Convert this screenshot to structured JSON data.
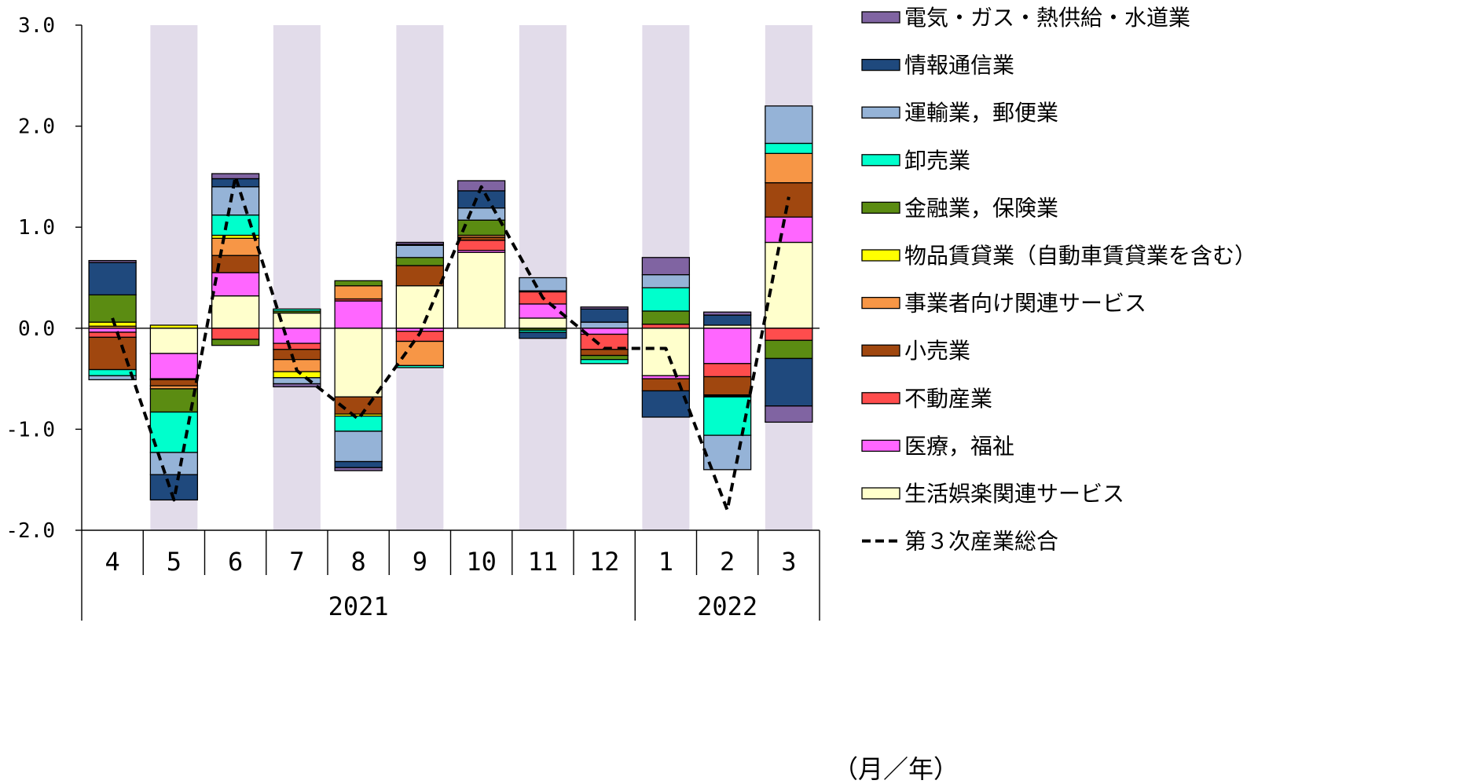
{
  "chart_data": {
    "type": "bar",
    "stacked": true,
    "categories": [
      "4",
      "5",
      "6",
      "7",
      "8",
      "9",
      "10",
      "11",
      "12",
      "1",
      "2",
      "3"
    ],
    "years": [
      {
        "label": "2021"
      },
      {
        "label": "2022"
      }
    ],
    "unit_label": "（月／年）",
    "ylim": [
      -2.0,
      3.0
    ],
    "yticks": [
      -2.0,
      -1.0,
      0.0,
      1.0,
      2.0,
      3.0
    ],
    "ytick_labels": [
      "-2.0",
      "-1.0",
      "0.0",
      "1.0",
      "2.0",
      "3.0"
    ],
    "shaded_categories": [
      1,
      3,
      5,
      7,
      9,
      11
    ],
    "shade_color": "#e2dcea",
    "legend_position": "right",
    "series": [
      {
        "name": "生活娯楽関連サービス",
        "color": "#ffffcc",
        "values": [
          0.0,
          -0.25,
          0.32,
          0.15,
          -0.68,
          0.42,
          0.75,
          0.1,
          0.0,
          -0.47,
          0.03,
          0.85
        ]
      },
      {
        "name": "医療，福祉",
        "color": "#ff66ff",
        "values": [
          -0.04,
          -0.25,
          0.23,
          -0.15,
          0.27,
          -0.03,
          0.02,
          0.14,
          -0.06,
          -0.03,
          -0.35,
          0.25
        ]
      },
      {
        "name": "不動産業",
        "color": "#ff4d4d",
        "values": [
          -0.05,
          -0.01,
          -0.11,
          -0.06,
          0.02,
          -0.1,
          0.1,
          0.12,
          -0.15,
          0.04,
          -0.13,
          -0.12
        ]
      },
      {
        "name": "小売業",
        "color": "#a0470f",
        "values": [
          -0.32,
          -0.06,
          0.17,
          -0.1,
          -0.17,
          0.2,
          0.03,
          0.0,
          -0.06,
          -0.12,
          -0.18,
          0.34
        ]
      },
      {
        "name": "事業者向け関連サービス",
        "color": "#f79646",
        "values": [
          0.02,
          -0.03,
          0.17,
          -0.12,
          0.13,
          -0.24,
          0.02,
          0.0,
          0.0,
          0.0,
          -0.01,
          0.29
        ]
      },
      {
        "name": "物品賃貸業（自動車賃貸業を含む）",
        "color": "#ffff00",
        "values": [
          0.04,
          0.03,
          0.03,
          -0.06,
          -0.02,
          0.0,
          0.0,
          0.01,
          0.0,
          0.0,
          0.0,
          0.0
        ]
      },
      {
        "name": "金融業，保険業",
        "color": "#5b8c12",
        "values": [
          0.27,
          -0.23,
          -0.06,
          0.02,
          0.05,
          0.08,
          0.15,
          -0.02,
          -0.04,
          0.13,
          -0.01,
          -0.18
        ]
      },
      {
        "name": "卸売業",
        "color": "#00ffcc",
        "values": [
          -0.06,
          -0.4,
          0.2,
          0.02,
          -0.15,
          -0.02,
          0.0,
          -0.02,
          -0.04,
          0.23,
          -0.38,
          0.1
        ]
      },
      {
        "name": "運輸業，郵便業",
        "color": "#95b3d7",
        "values": [
          -0.04,
          -0.22,
          0.28,
          -0.06,
          -0.3,
          0.12,
          0.12,
          0.13,
          0.06,
          0.13,
          -0.34,
          0.37
        ]
      },
      {
        "name": "情報通信業",
        "color": "#1f497d",
        "values": [
          0.32,
          -0.25,
          0.08,
          0.0,
          -0.06,
          0.01,
          0.17,
          -0.06,
          0.13,
          -0.26,
          0.1,
          -0.47
        ]
      },
      {
        "name": "電気・ガス・熱供給・水道業",
        "color": "#8064a2",
        "values": [
          0.02,
          0.0,
          0.05,
          -0.03,
          -0.03,
          0.02,
          0.1,
          0.0,
          0.02,
          0.17,
          0.03,
          -0.16
        ]
      }
    ],
    "line": {
      "name": "第３次産業総合",
      "color": "#000000",
      "dash": true,
      "values": [
        0.1,
        -1.7,
        1.5,
        -0.42,
        -0.9,
        -0.05,
        1.4,
        0.3,
        -0.2,
        -0.2,
        -1.8,
        1.3
      ]
    },
    "legend_order": [
      "電気・ガス・熱供給・水道業",
      "情報通信業",
      "運輸業，郵便業",
      "卸売業",
      "金融業，保険業",
      "物品賃貸業（自動車賃貸業を含む）",
      "事業者向け関連サービス",
      "小売業",
      "不動産業",
      "医療，福祉",
      "生活娯楽関連サービス",
      "第３次産業総合"
    ]
  }
}
